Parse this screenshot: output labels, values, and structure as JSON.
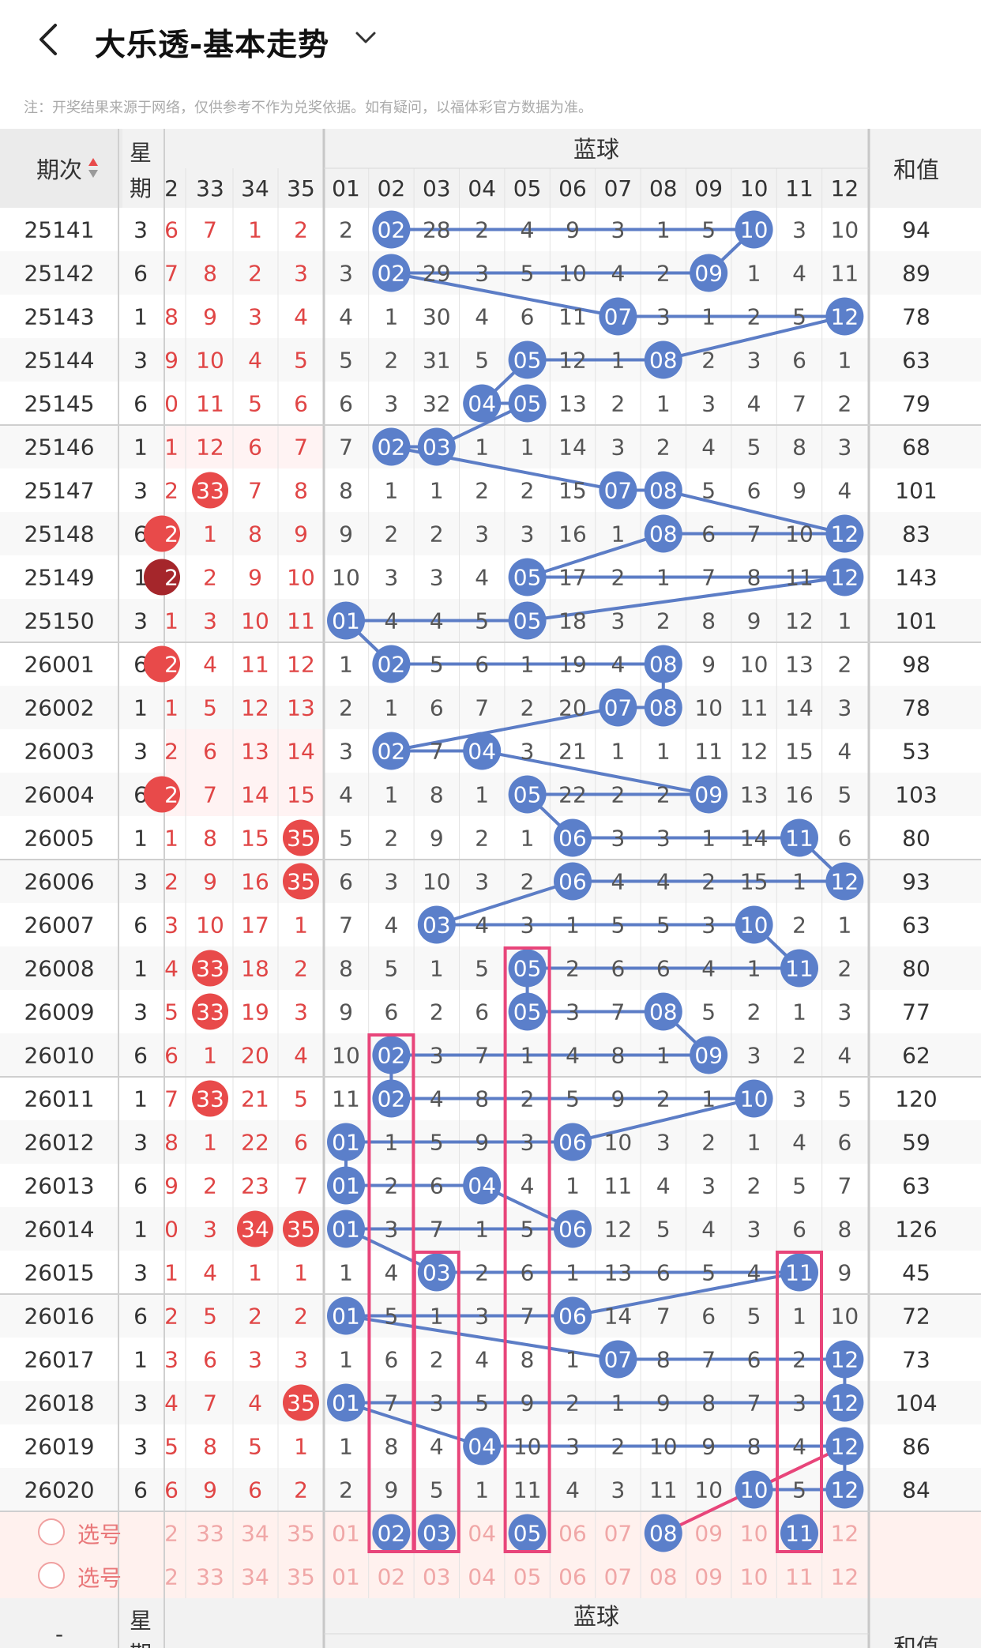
{
  "header": {
    "title": "大乐透-基本走势",
    "back_icon": "chevron-left-icon",
    "dropdown_icon": "chevron-down-icon"
  },
  "notice": "注：开奖结果来源于网络，仅供参考不作为兑奖依据。如有疑问，以福体彩官方数据为准。",
  "table": {
    "col_period": "期次",
    "col_week_top": "星",
    "col_week_bot": "期",
    "blue_title": "蓝球",
    "col_sum": "和值",
    "front_headers": [
      "2",
      "33",
      "34",
      "35"
    ],
    "blue_headers": [
      "01",
      "02",
      "03",
      "04",
      "05",
      "06",
      "07",
      "08",
      "09",
      "10",
      "11",
      "12"
    ],
    "rows": [
      {
        "p": "25141",
        "w": "3",
        "f": [
          "6",
          "7",
          "1",
          "2"
        ],
        "b": [
          2,
          "02",
          28,
          2,
          4,
          9,
          3,
          1,
          5,
          "10",
          3,
          10
        ],
        "s": "94"
      },
      {
        "p": "25142",
        "w": "6",
        "f": [
          "7",
          "8",
          "2",
          "3"
        ],
        "b": [
          3,
          "02",
          29,
          3,
          5,
          10,
          4,
          2,
          "09",
          1,
          4,
          11
        ],
        "s": "89"
      },
      {
        "p": "25143",
        "w": "1",
        "f": [
          "8",
          "9",
          "3",
          "4"
        ],
        "b": [
          4,
          1,
          30,
          4,
          6,
          11,
          "07",
          3,
          1,
          2,
          5,
          "12"
        ],
        "s": "78"
      },
      {
        "p": "25144",
        "w": "3",
        "f": [
          "9",
          "10",
          "4",
          "5"
        ],
        "b": [
          5,
          2,
          31,
          5,
          "05",
          12,
          1,
          "08",
          2,
          3,
          6,
          1
        ],
        "s": "63"
      },
      {
        "p": "25145",
        "w": "6",
        "f": [
          "0",
          "11",
          "5",
          "6"
        ],
        "b": [
          6,
          3,
          32,
          "04",
          "05",
          13,
          2,
          1,
          3,
          4,
          7,
          2
        ],
        "s": "79"
      },
      {
        "p": "25146",
        "w": "1",
        "f": [
          "1",
          "12",
          "6",
          "7"
        ],
        "b": [
          7,
          "02",
          "03",
          1,
          1,
          14,
          3,
          2,
          4,
          5,
          8,
          3
        ],
        "s": "68"
      },
      {
        "p": "25147",
        "w": "3",
        "f": [
          "2",
          "33",
          "7",
          "8"
        ],
        "b": [
          8,
          1,
          1,
          2,
          2,
          15,
          "07",
          "08",
          5,
          6,
          9,
          4
        ],
        "s": "101"
      },
      {
        "p": "25148",
        "w": "6",
        "f": [
          "2",
          "1",
          "8",
          "9"
        ],
        "b": [
          9,
          2,
          2,
          3,
          3,
          16,
          1,
          "08",
          6,
          7,
          10,
          "12"
        ],
        "s": "83"
      },
      {
        "p": "25149",
        "w": "1",
        "f": [
          "2",
          "2",
          "9",
          "10"
        ],
        "b": [
          10,
          3,
          3,
          4,
          "05",
          17,
          2,
          1,
          7,
          8,
          11,
          "12"
        ],
        "s": "143"
      },
      {
        "p": "25150",
        "w": "3",
        "f": [
          "1",
          "3",
          "10",
          "11"
        ],
        "b": [
          "01",
          4,
          4,
          5,
          "05",
          18,
          3,
          2,
          8,
          9,
          12,
          1
        ],
        "s": "101"
      },
      {
        "p": "26001",
        "w": "6",
        "f": [
          "2",
          "4",
          "11",
          "12"
        ],
        "b": [
          1,
          "02",
          5,
          6,
          1,
          19,
          4,
          "08",
          9,
          10,
          13,
          2
        ],
        "s": "98"
      },
      {
        "p": "26002",
        "w": "1",
        "f": [
          "1",
          "5",
          "12",
          "13"
        ],
        "b": [
          2,
          1,
          6,
          7,
          2,
          20,
          "07",
          "08",
          10,
          11,
          14,
          3
        ],
        "s": "78"
      },
      {
        "p": "26003",
        "w": "3",
        "f": [
          "2",
          "6",
          "13",
          "14"
        ],
        "b": [
          3,
          "02",
          7,
          "04",
          3,
          21,
          1,
          1,
          11,
          12,
          15,
          4
        ],
        "s": "53"
      },
      {
        "p": "26004",
        "w": "6",
        "f": [
          "2",
          "7",
          "14",
          "15"
        ],
        "b": [
          4,
          1,
          8,
          1,
          "05",
          22,
          2,
          2,
          "09",
          13,
          16,
          5
        ],
        "s": "103"
      },
      {
        "p": "26005",
        "w": "1",
        "f": [
          "1",
          "8",
          "15",
          "35"
        ],
        "b": [
          5,
          2,
          9,
          2,
          1,
          "06",
          3,
          3,
          1,
          14,
          "11",
          6
        ],
        "s": "80"
      },
      {
        "p": "26006",
        "w": "3",
        "f": [
          "2",
          "9",
          "16",
          "35"
        ],
        "b": [
          6,
          3,
          10,
          3,
          2,
          "06",
          4,
          4,
          2,
          15,
          1,
          "12"
        ],
        "s": "93"
      },
      {
        "p": "26007",
        "w": "6",
        "f": [
          "3",
          "10",
          "17",
          "1"
        ],
        "b": [
          7,
          4,
          "03",
          4,
          3,
          1,
          5,
          5,
          3,
          "10",
          2,
          1
        ],
        "s": "63"
      },
      {
        "p": "26008",
        "w": "1",
        "f": [
          "4",
          "33",
          "18",
          "2"
        ],
        "b": [
          8,
          5,
          1,
          5,
          "05",
          2,
          6,
          6,
          4,
          1,
          "11",
          2
        ],
        "s": "80"
      },
      {
        "p": "26009",
        "w": "3",
        "f": [
          "5",
          "33",
          "19",
          "3"
        ],
        "b": [
          9,
          6,
          2,
          6,
          "05",
          3,
          7,
          "08",
          5,
          2,
          1,
          3
        ],
        "s": "77"
      },
      {
        "p": "26010",
        "w": "6",
        "f": [
          "6",
          "1",
          "20",
          "4"
        ],
        "b": [
          10,
          "02",
          3,
          7,
          1,
          4,
          8,
          1,
          "09",
          3,
          2,
          4
        ],
        "s": "62"
      },
      {
        "p": "26011",
        "w": "1",
        "f": [
          "7",
          "33",
          "21",
          "5"
        ],
        "b": [
          11,
          "02",
          4,
          8,
          2,
          5,
          9,
          2,
          1,
          "10",
          3,
          5
        ],
        "s": "120"
      },
      {
        "p": "26012",
        "w": "3",
        "f": [
          "8",
          "1",
          "22",
          "6"
        ],
        "b": [
          "01",
          1,
          5,
          9,
          3,
          "06",
          10,
          3,
          2,
          1,
          4,
          6
        ],
        "s": "59"
      },
      {
        "p": "26013",
        "w": "6",
        "f": [
          "9",
          "2",
          "23",
          "7"
        ],
        "b": [
          "01",
          2,
          6,
          "04",
          4,
          1,
          11,
          4,
          3,
          2,
          5,
          7
        ],
        "s": "63"
      },
      {
        "p": "26014",
        "w": "1",
        "f": [
          "0",
          "3",
          "34",
          "35"
        ],
        "b": [
          "01",
          3,
          7,
          1,
          5,
          "06",
          12,
          5,
          4,
          3,
          6,
          8
        ],
        "s": "126"
      },
      {
        "p": "26015",
        "w": "3",
        "f": [
          "1",
          "4",
          "1",
          "1"
        ],
        "b": [
          1,
          4,
          "03",
          2,
          6,
          1,
          13,
          6,
          5,
          4,
          "11",
          9
        ],
        "s": "45"
      },
      {
        "p": "26016",
        "w": "6",
        "f": [
          "2",
          "5",
          "2",
          "2"
        ],
        "b": [
          "01",
          5,
          1,
          3,
          7,
          "06",
          14,
          7,
          6,
          5,
          1,
          10
        ],
        "s": "72"
      },
      {
        "p": "26017",
        "w": "1",
        "f": [
          "3",
          "6",
          "3",
          "3"
        ],
        "b": [
          1,
          6,
          2,
          4,
          8,
          1,
          "07",
          8,
          7,
          6,
          2,
          "12"
        ],
        "s": "73"
      },
      {
        "p": "26018",
        "w": "3",
        "f": [
          "4",
          "7",
          "4",
          "35"
        ],
        "b": [
          "01",
          7,
          3,
          5,
          9,
          2,
          1,
          9,
          8,
          7,
          3,
          "12"
        ],
        "s": "104"
      },
      {
        "p": "26019",
        "w": "3",
        "f": [
          "5",
          "8",
          "5",
          "1"
        ],
        "b": [
          1,
          8,
          4,
          "04",
          10,
          3,
          2,
          10,
          9,
          8,
          4,
          "12"
        ],
        "s": "86"
      },
      {
        "p": "26020",
        "w": "6",
        "f": [
          "6",
          "9",
          "6",
          "2"
        ],
        "b": [
          2,
          9,
          5,
          1,
          11,
          4,
          3,
          11,
          10,
          "10",
          5,
          "12"
        ],
        "s": "84"
      }
    ],
    "select_label": "选号",
    "select_rows": [
      {
        "f": [
          "2",
          "33",
          "34",
          "35"
        ],
        "b": [
          "01",
          "02",
          "03",
          "04",
          "05",
          "06",
          "07",
          "08",
          "09",
          "10",
          "11",
          "12"
        ],
        "picked": [
          "02",
          "03",
          "05",
          "08",
          "11"
        ]
      },
      {
        "f": [
          "2",
          "33",
          "34",
          "35"
        ],
        "b": [
          "01",
          "02",
          "03",
          "04",
          "05",
          "06",
          "07",
          "08",
          "09",
          "10",
          "11",
          "12"
        ],
        "picked": []
      }
    ],
    "footer": {
      "period": "-",
      "week_top": "星",
      "week_bot": "期",
      "blue_title": "蓝球",
      "sum": "和值"
    },
    "red_hits": [
      [
        1,
        "33",
        1
      ],
      [
        2,
        "2",
        0
      ],
      [
        2,
        "1",
        0
      ],
      [
        2,
        "2",
        0
      ]
    ],
    "colors": {
      "blue_ball": "#5b7fca",
      "red_ball": "#e84a4a",
      "dark_red_ball": "#a5262b",
      "red_text": "#e04545",
      "pink_box": "#e8457a",
      "line": "#4a6fc0",
      "select_bg": "#fff1ee"
    }
  }
}
